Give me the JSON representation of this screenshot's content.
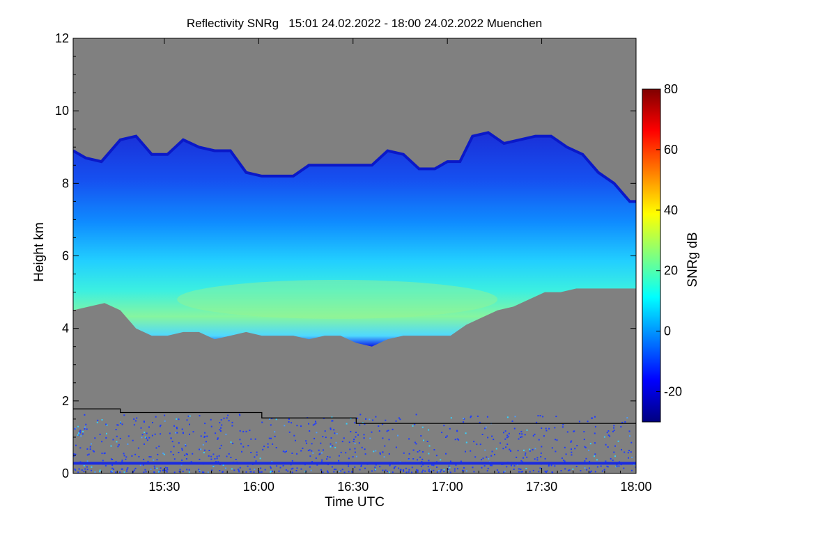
{
  "chart_data": {
    "type": "heatmap",
    "title": "Reflectivity SNRg   15:01 24.02.2022 - 18:00 24.02.2022 Muenchen",
    "xlabel": "Time UTC",
    "ylabel": "Height km",
    "colorbar_label": "SNRg dB",
    "x_range_minutes": [
      901,
      1080
    ],
    "x_ticks": [
      {
        "minutes": 930,
        "label": "15:30"
      },
      {
        "minutes": 960,
        "label": "16:00"
      },
      {
        "minutes": 990,
        "label": "16:30"
      },
      {
        "minutes": 1020,
        "label": "17:00"
      },
      {
        "minutes": 1050,
        "label": "17:30"
      },
      {
        "minutes": 1080,
        "label": "18:00"
      }
    ],
    "ylim": [
      0,
      12
    ],
    "y_ticks": [
      0,
      2,
      4,
      6,
      8,
      10,
      12
    ],
    "colorbar_range": [
      -30,
      80
    ],
    "colorbar_ticks": [
      -20,
      0,
      20,
      40,
      60,
      80
    ],
    "background_color": "#808080",
    "colormap": [
      "#00007f",
      "#0000ff",
      "#007fff",
      "#00ffff",
      "#7fff7f",
      "#ffff00",
      "#ff7f00",
      "#ff0000",
      "#7f0000"
    ],
    "cloud_top_km": [
      [
        901,
        8.9
      ],
      [
        905,
        8.7
      ],
      [
        910,
        8.6
      ],
      [
        916,
        9.2
      ],
      [
        921,
        9.3
      ],
      [
        926,
        8.8
      ],
      [
        931,
        8.8
      ],
      [
        936,
        9.2
      ],
      [
        941,
        9.0
      ],
      [
        946,
        8.9
      ],
      [
        951,
        8.9
      ],
      [
        956,
        8.3
      ],
      [
        961,
        8.2
      ],
      [
        966,
        8.2
      ],
      [
        971,
        8.2
      ],
      [
        976,
        8.5
      ],
      [
        981,
        8.5
      ],
      [
        986,
        8.5
      ],
      [
        991,
        8.5
      ],
      [
        996,
        8.5
      ],
      [
        1001,
        8.9
      ],
      [
        1006,
        8.8
      ],
      [
        1011,
        8.4
      ],
      [
        1016,
        8.4
      ],
      [
        1020,
        8.6
      ],
      [
        1024,
        8.6
      ],
      [
        1028,
        9.3
      ],
      [
        1033,
        9.4
      ],
      [
        1038,
        9.1
      ],
      [
        1043,
        9.2
      ],
      [
        1048,
        9.3
      ],
      [
        1053,
        9.3
      ],
      [
        1058,
        9.0
      ],
      [
        1063,
        8.8
      ],
      [
        1068,
        8.3
      ],
      [
        1073,
        8.0
      ],
      [
        1078,
        7.5
      ],
      [
        1080,
        7.5
      ]
    ],
    "cloud_base_km": [
      [
        901,
        4.5
      ],
      [
        906,
        4.6
      ],
      [
        911,
        4.7
      ],
      [
        916,
        4.5
      ],
      [
        921,
        4.0
      ],
      [
        926,
        3.8
      ],
      [
        931,
        3.8
      ],
      [
        936,
        3.9
      ],
      [
        941,
        3.9
      ],
      [
        946,
        3.7
      ],
      [
        951,
        3.8
      ],
      [
        956,
        3.9
      ],
      [
        961,
        3.8
      ],
      [
        966,
        3.8
      ],
      [
        971,
        3.8
      ],
      [
        976,
        3.7
      ],
      [
        981,
        3.8
      ],
      [
        986,
        3.8
      ],
      [
        991,
        3.6
      ],
      [
        996,
        3.5
      ],
      [
        1001,
        3.7
      ],
      [
        1006,
        3.8
      ],
      [
        1011,
        3.8
      ],
      [
        1016,
        3.8
      ],
      [
        1021,
        3.8
      ],
      [
        1026,
        4.1
      ],
      [
        1031,
        4.3
      ],
      [
        1036,
        4.5
      ],
      [
        1041,
        4.6
      ],
      [
        1046,
        4.8
      ],
      [
        1051,
        5.0
      ],
      [
        1056,
        5.0
      ],
      [
        1061,
        5.1
      ],
      [
        1066,
        5.1
      ],
      [
        1071,
        5.1
      ],
      [
        1076,
        5.1
      ],
      [
        1080,
        5.1
      ]
    ],
    "black_line_km": [
      [
        901,
        1.78
      ],
      [
        916,
        1.78
      ],
      [
        916,
        1.68
      ],
      [
        961,
        1.68
      ],
      [
        961,
        1.53
      ],
      [
        991,
        1.53
      ],
      [
        991,
        1.38
      ],
      [
        1080,
        1.38
      ]
    ],
    "surface_line_km": 0.28
  }
}
